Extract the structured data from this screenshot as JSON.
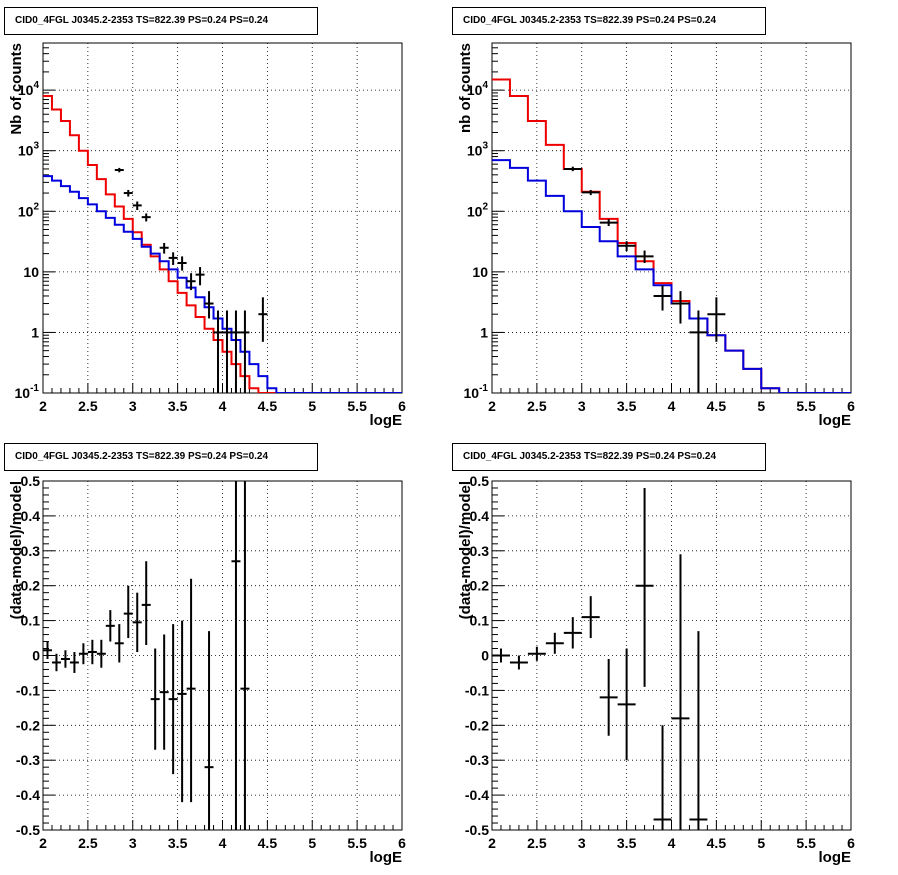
{
  "chart_data": [
    {
      "type": "line",
      "title": "CID0_4FGL J0345.2-2353 TS=822.39 PS=0.24 PS=0.24",
      "xlabel": "logE",
      "ylabel": "Nb of counts",
      "xlim": [
        2,
        6
      ],
      "ylim": [
        0.1,
        60000
      ],
      "yscale": "log",
      "grid": true,
      "xticks": [
        "2",
        "2.5",
        "3",
        "3.5",
        "4",
        "4.5",
        "5",
        "5.5",
        "6"
      ],
      "yticks": [
        "10^-1",
        "1",
        "10",
        "10^2",
        "10^3",
        "10^4"
      ],
      "bin_edges": [
        2.0,
        2.1,
        2.2,
        2.3,
        2.4,
        2.5,
        2.6,
        2.7,
        2.8,
        2.9,
        3.0,
        3.1,
        3.2,
        3.3,
        3.4,
        3.5,
        3.6,
        3.7,
        3.8,
        3.9,
        4.0,
        4.1,
        4.2,
        4.3,
        4.4,
        4.5,
        4.6,
        4.7,
        4.8,
        4.9,
        5.0,
        5.1,
        5.2,
        5.3,
        5.4,
        5.5,
        5.6,
        5.7,
        5.8,
        5.9,
        6.0
      ],
      "series": [
        {
          "color": "#ee0000",
          "style": "step",
          "values": [
            8000,
            4800,
            3100,
            1800,
            1000,
            580,
            340,
            190,
            120,
            75,
            45,
            28,
            18,
            11,
            7,
            4.5,
            2.8,
            1.8,
            1.15,
            0.75,
            0.48,
            0.3,
            0.19,
            0.12,
            0.1,
            0.1,
            0.1,
            0.1,
            0.1,
            0.1,
            0.1,
            0.1,
            0.1,
            0.1,
            0.1,
            0.1,
            0.1,
            0.1,
            0.1,
            0.1
          ]
        },
        {
          "color": "#0000dd",
          "style": "step",
          "values": [
            380,
            320,
            260,
            210,
            165,
            130,
            100,
            78,
            60,
            46,
            35,
            26,
            20,
            15,
            11,
            8,
            5.5,
            3.8,
            2.6,
            1.7,
            1.15,
            0.75,
            0.48,
            0.3,
            0.19,
            0.12,
            0.1,
            0.1,
            0.1,
            0.1,
            0.1,
            0.1,
            0.1,
            0.1,
            0.1,
            0.1,
            0.1,
            0.1,
            0.1,
            0.1
          ]
        }
      ],
      "points": [
        {
          "x": 2.85,
          "y": 480,
          "lo": 440,
          "hi": 520
        },
        {
          "x": 2.95,
          "y": 200,
          "lo": 175,
          "hi": 225
        },
        {
          "x": 3.05,
          "y": 125,
          "lo": 105,
          "hi": 145
        },
        {
          "x": 3.15,
          "y": 80,
          "lo": 68,
          "hi": 92
        },
        {
          "x": 3.35,
          "y": 25,
          "lo": 20,
          "hi": 30
        },
        {
          "x": 3.45,
          "y": 17,
          "lo": 13,
          "hi": 21
        },
        {
          "x": 3.55,
          "y": 14,
          "lo": 10.5,
          "hi": 18
        },
        {
          "x": 3.65,
          "y": 7,
          "lo": 5,
          "hi": 9.5
        },
        {
          "x": 3.75,
          "y": 9,
          "lo": 6,
          "hi": 12
        },
        {
          "x": 3.85,
          "y": 3,
          "lo": 1.7,
          "hi": 4.8
        },
        {
          "x": 3.95,
          "y": 1,
          "lo": 0.1,
          "hi": 2.3
        },
        {
          "x": 4.05,
          "y": 1,
          "lo": 0.1,
          "hi": 2.3
        },
        {
          "x": 4.15,
          "y": 1,
          "lo": 0.1,
          "hi": 2.3
        },
        {
          "x": 4.25,
          "y": 1,
          "lo": 0.1,
          "hi": 2.3
        },
        {
          "x": 4.45,
          "y": 2,
          "lo": 0.7,
          "hi": 3.8
        }
      ]
    },
    {
      "type": "line",
      "title": "CID0_4FGL J0345.2-2353 TS=822.39 PS=0.24 PS=0.24",
      "xlabel": "logE",
      "ylabel": "nb of counts",
      "xlim": [
        2,
        6
      ],
      "ylim": [
        0.1,
        60000
      ],
      "yscale": "log",
      "grid": true,
      "xticks": [
        "2",
        "2.5",
        "3",
        "3.5",
        "4",
        "4.5",
        "5",
        "5.5",
        "6"
      ],
      "yticks": [
        "10^-1",
        "1",
        "10",
        "10^2",
        "10^3",
        "10^4"
      ],
      "bin_edges": [
        2.0,
        2.2,
        2.4,
        2.6,
        2.8,
        3.0,
        3.2,
        3.4,
        3.6,
        3.8,
        4.0,
        4.2,
        4.4,
        4.6,
        4.8,
        5.0,
        5.2,
        5.4,
        5.6,
        5.8,
        6.0
      ],
      "series": [
        {
          "color": "#ee0000",
          "style": "step",
          "values": [
            15000,
            8000,
            3100,
            1250,
            500,
            210,
            75,
            30,
            15,
            6.5,
            3.3,
            1.7,
            0.9,
            0.5,
            0.25,
            0.12,
            0.1,
            0.1,
            0.1,
            0.1
          ]
        },
        {
          "color": "#0000dd",
          "style": "step",
          "values": [
            700,
            520,
            320,
            180,
            100,
            55,
            32,
            18,
            11,
            6,
            3,
            1.7,
            0.9,
            0.5,
            0.25,
            0.12,
            0.1,
            0.1,
            0.1,
            0.1
          ]
        }
      ],
      "points": [
        {
          "x": 2.9,
          "y": 500,
          "lo": 460,
          "hi": 545
        },
        {
          "x": 3.1,
          "y": 205,
          "lo": 185,
          "hi": 225
        },
        {
          "x": 3.3,
          "y": 65,
          "lo": 57,
          "hi": 74
        },
        {
          "x": 3.5,
          "y": 27,
          "lo": 22,
          "hi": 32
        },
        {
          "x": 3.7,
          "y": 18,
          "lo": 14,
          "hi": 22.5
        },
        {
          "x": 3.9,
          "y": 4,
          "lo": 2.3,
          "hi": 6
        },
        {
          "x": 4.1,
          "y": 3,
          "lo": 1.4,
          "hi": 4.8
        },
        {
          "x": 4.3,
          "y": 1,
          "lo": 0.1,
          "hi": 2.3
        },
        {
          "x": 4.5,
          "y": 2,
          "lo": 0.7,
          "hi": 3.8
        }
      ]
    },
    {
      "type": "scatter",
      "title": "CID0_4FGL J0345.2-2353 TS=822.39 PS=0.24 PS=0.24",
      "xlabel": "logE",
      "ylabel": "(data-model)/model",
      "xlim": [
        2,
        6
      ],
      "ylim": [
        -0.5,
        0.5
      ],
      "grid": true,
      "xticks": [
        "2",
        "2.5",
        "3",
        "3.5",
        "4",
        "4.5",
        "5",
        "5.5",
        "6"
      ],
      "yticks": [
        "-0.5",
        "-0.4",
        "-0.3",
        "-0.2",
        "-0.1",
        "0",
        "0.1",
        "0.2",
        "0.3",
        "0.4",
        "0.5"
      ],
      "xhalf": 0.05,
      "points": [
        {
          "x": 2.05,
          "y": 0.015,
          "lo": -0.01,
          "hi": 0.04
        },
        {
          "x": 2.15,
          "y": -0.02,
          "lo": -0.045,
          "hi": 0.005
        },
        {
          "x": 2.25,
          "y": -0.01,
          "lo": -0.035,
          "hi": 0.015
        },
        {
          "x": 2.35,
          "y": -0.02,
          "lo": -0.05,
          "hi": 0.01
        },
        {
          "x": 2.45,
          "y": 0.005,
          "lo": -0.025,
          "hi": 0.035
        },
        {
          "x": 2.55,
          "y": 0.01,
          "lo": -0.025,
          "hi": 0.045
        },
        {
          "x": 2.65,
          "y": 0.005,
          "lo": -0.035,
          "hi": 0.045
        },
        {
          "x": 2.75,
          "y": 0.085,
          "lo": 0.04,
          "hi": 0.13
        },
        {
          "x": 2.85,
          "y": 0.035,
          "lo": -0.02,
          "hi": 0.09
        },
        {
          "x": 2.95,
          "y": 0.12,
          "lo": 0.05,
          "hi": 0.2
        },
        {
          "x": 3.05,
          "y": 0.095,
          "lo": 0.01,
          "hi": 0.18
        },
        {
          "x": 3.15,
          "y": 0.145,
          "lo": 0.03,
          "hi": 0.27
        },
        {
          "x": 3.25,
          "y": -0.125,
          "lo": -0.27,
          "hi": 0.02
        },
        {
          "x": 3.35,
          "y": -0.105,
          "lo": -0.27,
          "hi": 0.06
        },
        {
          "x": 3.45,
          "y": -0.125,
          "lo": -0.34,
          "hi": 0.09
        },
        {
          "x": 3.55,
          "y": -0.11,
          "lo": -0.42,
          "hi": 0.1
        },
        {
          "x": 3.65,
          "y": -0.095,
          "lo": -0.42,
          "hi": 0.22
        },
        {
          "x": 3.85,
          "y": -0.32,
          "lo": -0.5,
          "hi": 0.07
        },
        {
          "x": 4.15,
          "y": 0.27,
          "lo": -0.5,
          "hi": 0.5
        },
        {
          "x": 4.25,
          "y": -0.095,
          "lo": -0.5,
          "hi": 0.5
        }
      ]
    },
    {
      "type": "scatter",
      "title": "CID0_4FGL J0345.2-2353 TS=822.39 PS=0.24 PS=0.24",
      "xlabel": "logE",
      "ylabel": "(data-model)/model",
      "xlim": [
        2,
        6
      ],
      "ylim": [
        -0.5,
        0.5
      ],
      "grid": true,
      "xticks": [
        "2",
        "2.5",
        "3",
        "3.5",
        "4",
        "4.5",
        "5",
        "5.5",
        "6"
      ],
      "yticks": [
        "-0.5",
        "-0.4",
        "-0.3",
        "-0.2",
        "-0.1",
        "0",
        "0.1",
        "0.2",
        "0.3",
        "0.4",
        "0.5"
      ],
      "xhalf": 0.1,
      "points": [
        {
          "x": 2.1,
          "y": 0.0,
          "lo": -0.02,
          "hi": 0.02
        },
        {
          "x": 2.3,
          "y": -0.02,
          "lo": -0.04,
          "hi": 0.0
        },
        {
          "x": 2.5,
          "y": 0.005,
          "lo": -0.015,
          "hi": 0.025
        },
        {
          "x": 2.7,
          "y": 0.035,
          "lo": 0.005,
          "hi": 0.065
        },
        {
          "x": 2.9,
          "y": 0.065,
          "lo": 0.02,
          "hi": 0.11
        },
        {
          "x": 3.1,
          "y": 0.11,
          "lo": 0.05,
          "hi": 0.17
        },
        {
          "x": 3.3,
          "y": -0.12,
          "lo": -0.23,
          "hi": -0.01
        },
        {
          "x": 3.5,
          "y": -0.14,
          "lo": -0.3,
          "hi": 0.02
        },
        {
          "x": 3.7,
          "y": 0.2,
          "lo": -0.09,
          "hi": 0.48
        },
        {
          "x": 3.9,
          "y": -0.47,
          "lo": -0.5,
          "hi": -0.2
        },
        {
          "x": 4.1,
          "y": -0.18,
          "lo": -0.5,
          "hi": 0.29
        },
        {
          "x": 4.3,
          "y": -0.47,
          "lo": -0.5,
          "hi": 0.07
        }
      ]
    }
  ]
}
